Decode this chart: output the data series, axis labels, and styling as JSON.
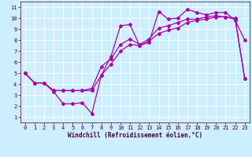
{
  "xlabel": "Windchill (Refroidissement éolien,°C)",
  "bg_color": "#cceeff",
  "line_color": "#aa00aa",
  "xlim": [
    -0.5,
    23.5
  ],
  "ylim": [
    0.5,
    11.5
  ],
  "xticks": [
    0,
    1,
    2,
    3,
    4,
    5,
    6,
    7,
    8,
    9,
    10,
    11,
    12,
    13,
    14,
    15,
    16,
    17,
    18,
    19,
    20,
    21,
    22,
    23
  ],
  "yticks": [
    1,
    2,
    3,
    4,
    5,
    6,
    7,
    8,
    9,
    10,
    11
  ],
  "line1_x": [
    0,
    1,
    2,
    3,
    4,
    5,
    6,
    7,
    8,
    9,
    10,
    11,
    12,
    13,
    14,
    15,
    16,
    17,
    18,
    19,
    20,
    21,
    22,
    23
  ],
  "line1_y": [
    5.0,
    4.1,
    4.1,
    3.3,
    2.2,
    2.2,
    2.3,
    1.3,
    4.8,
    6.5,
    9.3,
    9.4,
    7.5,
    7.8,
    10.6,
    9.9,
    10.0,
    10.8,
    10.5,
    10.3,
    10.5,
    10.5,
    9.8,
    8.0
  ],
  "line2_x": [
    0,
    1,
    2,
    3,
    4,
    5,
    6,
    7,
    8,
    9,
    10,
    11,
    12,
    13,
    14,
    15,
    16,
    17,
    18,
    19,
    20,
    21,
    22,
    23
  ],
  "line2_y": [
    5.0,
    4.1,
    4.1,
    3.4,
    3.4,
    3.4,
    3.4,
    3.4,
    4.8,
    5.8,
    7.0,
    7.6,
    7.5,
    7.9,
    8.6,
    8.9,
    9.1,
    9.6,
    9.8,
    9.9,
    10.1,
    10.1,
    9.9,
    4.5
  ],
  "line3_x": [
    0,
    1,
    2,
    3,
    4,
    5,
    6,
    7,
    8,
    9,
    10,
    11,
    12,
    13,
    14,
    15,
    16,
    17,
    18,
    19,
    20,
    21,
    22,
    23
  ],
  "line3_y": [
    5.0,
    4.1,
    4.1,
    3.4,
    3.4,
    3.4,
    3.4,
    3.6,
    5.6,
    6.3,
    7.6,
    8.1,
    7.6,
    8.1,
    9.1,
    9.3,
    9.6,
    9.9,
    9.9,
    10.1,
    10.2,
    10.1,
    10.0,
    4.5
  ],
  "tick_fontsize": 5,
  "xlabel_fontsize": 5.5,
  "tick_color": "#440044",
  "grid_color": "#ffffff",
  "spine_color": "#440044"
}
